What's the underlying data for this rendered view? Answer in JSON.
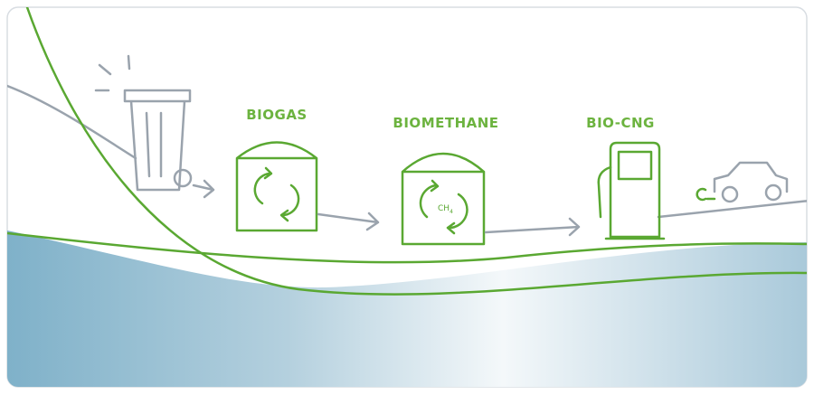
{
  "stages": [
    {
      "label": "BIOGAS"
    },
    {
      "label": "BIOMETHANE"
    },
    {
      "label": "BIO-CNG"
    }
  ],
  "formula": {
    "element": "CH",
    "subscript": "4"
  }
}
